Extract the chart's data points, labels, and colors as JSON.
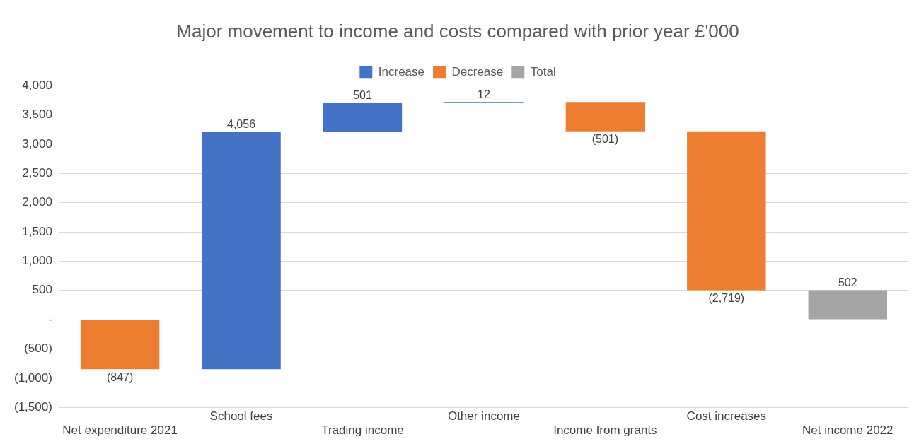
{
  "chart_data": {
    "type": "bar",
    "title": "Major movement to income and costs compared with prior year £'000",
    "categories": [
      "Net expenditure 2021",
      "School fees",
      "Trading income",
      "Other income",
      "Income from grants",
      "Cost increases",
      "Net income 2022"
    ],
    "series": [
      {
        "name": "Increase",
        "color": "#4472c4",
        "values": [
          null,
          4056,
          501,
          12,
          null,
          null,
          null
        ],
        "base": [
          null,
          -847,
          3209,
          3710,
          null,
          null,
          null
        ],
        "value_labels": [
          null,
          "4,056",
          "501",
          "12",
          null,
          null,
          null
        ]
      },
      {
        "name": "Decrease",
        "color": "#ed7d31",
        "values": [
          -847,
          null,
          null,
          null,
          -501,
          -2719,
          null
        ],
        "base": [
          0,
          null,
          null,
          null,
          3722,
          3221,
          null
        ],
        "value_labels": [
          "(847)",
          null,
          null,
          null,
          "(501)",
          "(2,719)",
          null
        ]
      },
      {
        "name": "Total",
        "color": "#a5a5a5",
        "values": [
          null,
          null,
          null,
          null,
          null,
          null,
          502
        ],
        "base": [
          null,
          null,
          null,
          null,
          null,
          null,
          0
        ],
        "value_labels": [
          null,
          null,
          null,
          null,
          null,
          null,
          "502"
        ]
      }
    ],
    "ylim": [
      -1500,
      4000
    ],
    "yticks": [
      {
        "value": -1500,
        "label": "(1,500)"
      },
      {
        "value": -1000,
        "label": "(1,000)"
      },
      {
        "value": -500,
        "label": "(500)"
      },
      {
        "value": 0,
        "label": "-"
      },
      {
        "value": 500,
        "label": "500"
      },
      {
        "value": 1000,
        "label": "1,000"
      },
      {
        "value": 1500,
        "label": "1,500"
      },
      {
        "value": 2000,
        "label": "2,000"
      },
      {
        "value": 2500,
        "label": "2,500"
      },
      {
        "value": 3000,
        "label": "3,000"
      },
      {
        "value": 3500,
        "label": "3,500"
      },
      {
        "value": 4000,
        "label": "4,000"
      }
    ],
    "grid": "y",
    "legend": "top"
  }
}
